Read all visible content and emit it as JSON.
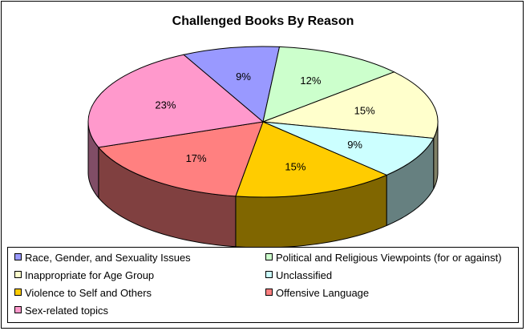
{
  "chart_data": {
    "type": "pie",
    "title": "Challenged Books By Reason",
    "slices": [
      {
        "label": "Race, Gender, and Sexuality Issues",
        "value": 9,
        "display": "9%",
        "color": "#9999ff"
      },
      {
        "label": "Political and Religious Viewpoints (for or against)",
        "value": 12,
        "display": "12%",
        "color": "#ccffcc"
      },
      {
        "label": "Inappropriate for Age Group",
        "value": 15,
        "display": "15%",
        "color": "#ffffcc"
      },
      {
        "label": "Unclassified",
        "value": 9,
        "display": "9%",
        "color": "#ccffff"
      },
      {
        "label": "Violence to Self and Others",
        "value": 15,
        "display": "15%",
        "color": "#ffcc00"
      },
      {
        "label": "Offensive Language",
        "value": 17,
        "display": "17%",
        "color": "#ff8080"
      },
      {
        "label": "Sex-related topics",
        "value": 23,
        "display": "23%",
        "color": "#ff99cc"
      }
    ],
    "style": "3d",
    "legend_position": "bottom"
  }
}
